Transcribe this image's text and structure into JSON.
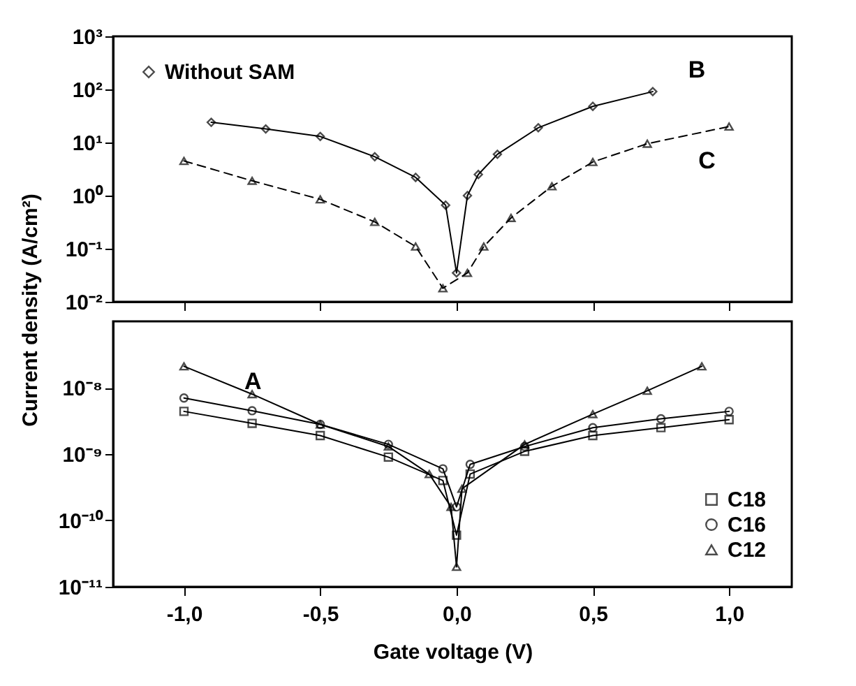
{
  "chart_data": [
    {
      "type": "line",
      "ylabel": "Current density (A/cm²)",
      "log": true,
      "tick_labels": "y",
      "legend": "top left",
      "grid": false,
      "xlim": [
        -1.26,
        1.23
      ],
      "xticks": [
        {
          "value": -1,
          "label": null
        },
        {
          "value": -0.5,
          "label": null
        },
        {
          "value": 0,
          "label": null
        },
        {
          "value": 0.5,
          "label": null
        },
        {
          "value": 1,
          "label": null
        }
      ],
      "ylim": [
        0.01,
        1000
      ],
      "yticks": [
        {
          "value": 0.01,
          "label": "10⁻²"
        },
        {
          "value": 0.1,
          "label": "10⁻¹"
        },
        {
          "value": 1,
          "label": "10⁰"
        },
        {
          "value": 10,
          "label": "10¹"
        },
        {
          "value": 100,
          "label": "10²"
        },
        {
          "value": 1000,
          "label": "10³"
        }
      ],
      "annotations": [
        "B",
        "C"
      ],
      "series": [
        {
          "name": "Without SAM",
          "color": "#000000",
          "marker": "diamond",
          "line_style": "solid",
          "x": [
            -0.9,
            -0.7,
            -0.5,
            -0.3,
            -0.15,
            -0.04,
            0,
            0.04,
            0.08,
            0.15,
            0.3,
            0.5,
            0.72
          ],
          "values": [
            24,
            18,
            13,
            5.4,
            2.2,
            0.66,
            0.035,
            1.0,
            2.5,
            6,
            19,
            48,
            91
          ]
        },
        {
          "color": "#000000",
          "marker": "triangle",
          "line_style": "dashed",
          "x": [
            -1,
            -0.75,
            -0.5,
            -0.3,
            -0.15,
            -0.05,
            0.04,
            0.1,
            0.2,
            0.35,
            0.5,
            0.7,
            1
          ],
          "values": [
            4.5,
            1.9,
            0.85,
            0.32,
            0.11,
            0.018,
            0.035,
            0.11,
            0.38,
            1.5,
            4.3,
            9.5,
            20
          ]
        }
      ]
    },
    {
      "type": "line",
      "xlabel": "Gate voltage (V)",
      "log": true,
      "legend": "bottom right",
      "grid": false,
      "xlim": [
        -1.26,
        1.23
      ],
      "xticks": [
        {
          "value": -1,
          "label": "-1,0"
        },
        {
          "value": -0.5,
          "label": "-0,5"
        },
        {
          "value": 0,
          "label": "0,0"
        },
        {
          "value": 0.5,
          "label": "0,5"
        },
        {
          "value": 1,
          "label": "1,0"
        }
      ],
      "ylim": [
        1e-11,
        1e-07
      ],
      "yticks": [
        {
          "value": 1e-11,
          "label": "10⁻¹¹"
        },
        {
          "value": 1e-10,
          "label": "10⁻¹⁰"
        },
        {
          "value": 1e-09,
          "label": "10⁻⁹"
        },
        {
          "value": 1e-08,
          "label": "10⁻⁸"
        }
      ],
      "annotations": [
        "A"
      ],
      "series": [
        {
          "name": "C18",
          "color": "#000000",
          "marker": "square",
          "line_style": "solid",
          "x": [
            -1,
            -0.75,
            -0.5,
            -0.25,
            -0.05,
            0,
            0.05,
            0.25,
            0.5,
            0.75,
            1
          ],
          "values": [
            4.4e-09,
            2.9e-09,
            1.9e-09,
            9e-10,
            4e-10,
            6e-11,
            5e-10,
            1.1e-09,
            1.9e-09,
            2.5e-09,
            3.3e-09
          ]
        },
        {
          "name": "C16",
          "color": "#000000",
          "marker": "circle",
          "line_style": "solid",
          "x": [
            -1,
            -0.75,
            -0.5,
            -0.25,
            -0.05,
            0,
            0.05,
            0.25,
            0.5,
            0.75,
            1
          ],
          "values": [
            7e-09,
            4.5e-09,
            2.8e-09,
            1.4e-09,
            6e-10,
            1.6e-10,
            7e-10,
            1.3e-09,
            2.5e-09,
            3.4e-09,
            4.4e-09
          ]
        },
        {
          "name": "C12",
          "color": "#000000",
          "marker": "triangle",
          "line_style": "solid",
          "x": [
            -1,
            -0.75,
            -0.5,
            -0.25,
            -0.1,
            -0.02,
            0,
            0.02,
            0.25,
            0.5,
            0.7,
            0.9
          ],
          "values": [
            2.1e-08,
            8e-09,
            2.8e-09,
            1.3e-09,
            5e-10,
            1.6e-10,
            2e-11,
            3e-10,
            1.4e-09,
            4e-09,
            9e-09,
            2.1e-08
          ]
        }
      ]
    }
  ]
}
